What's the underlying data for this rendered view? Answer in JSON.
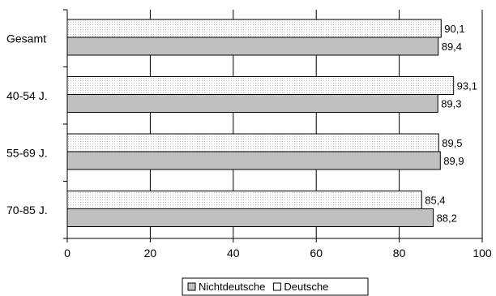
{
  "chart_data": {
    "type": "bar",
    "orientation": "horizontal",
    "categories": [
      "Gesamt",
      "40-54 J.",
      "55-69 J.",
      "70-85 J."
    ],
    "series": [
      {
        "name": "Deutsche",
        "values": [
          90.1,
          93.1,
          89.5,
          85.4
        ],
        "labels": [
          "90,1",
          "93,1",
          "89,5",
          "85,4"
        ],
        "fill": "#ffffff",
        "pattern": "dotted"
      },
      {
        "name": "Nichtdeutsche",
        "values": [
          89.4,
          89.3,
          89.9,
          88.2
        ],
        "labels": [
          "89,4",
          "89,3",
          "89,9",
          "88,2"
        ],
        "fill": "#c0c0c0",
        "pattern": "solid"
      }
    ],
    "xlim": [
      0,
      100
    ],
    "xticks": [
      "0",
      "20",
      "40",
      "60",
      "80",
      "100"
    ],
    "grid": true,
    "legend": {
      "placement": "bottom-center",
      "entries": [
        {
          "name": "Nichtdeutsche",
          "fill": "#c0c0c0"
        },
        {
          "name": "Deutsche",
          "fill": "#ffffff"
        }
      ]
    }
  }
}
